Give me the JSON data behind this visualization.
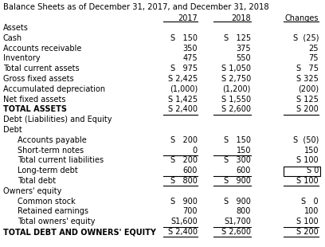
{
  "title": "Balance Sheets as of December 31, 2017, and December 31, 2018",
  "rows": [
    {
      "label": "Assets",
      "v2017": "",
      "v2018": "",
      "vchg": "",
      "style": "section",
      "indent": 0
    },
    {
      "label": "Cash",
      "v2017": "S   150",
      "v2018": "S   125",
      "vchg": "S  (25)",
      "style": "normal",
      "indent": 0
    },
    {
      "label": "Accounts receivable",
      "v2017": "350",
      "v2018": "375",
      "vchg": "25",
      "style": "normal",
      "indent": 0
    },
    {
      "label": "Inventory",
      "v2017": "475",
      "v2018": "550",
      "vchg": "75",
      "style": "normal",
      "indent": 0
    },
    {
      "label": "Total current assets",
      "v2017": "S   975",
      "v2018": "S 1,050",
      "vchg": "S   75",
      "style": "normal",
      "indent": 0
    },
    {
      "label": "Gross fixed assets",
      "v2017": "S 2,425",
      "v2018": "S 2,750",
      "vchg": "S 325",
      "style": "normal",
      "indent": 0
    },
    {
      "label": "Accumulated depreciation",
      "v2017": "(1,000)",
      "v2018": "(1,200)",
      "vchg": "(200)",
      "style": "normal",
      "indent": 0
    },
    {
      "label": "Net fixed assets",
      "v2017": "S 1,425",
      "v2018": "S 1,550",
      "vchg": "S 125",
      "style": "normal",
      "indent": 0
    },
    {
      "label": "TOTAL ASSETS",
      "v2017": "S 2,400",
      "v2018": "S 2,600",
      "vchg": "S 200",
      "style": "bold_underline",
      "indent": 0
    },
    {
      "label": "Debt (Liabilities) and Equity",
      "v2017": "",
      "v2018": "",
      "vchg": "",
      "style": "section",
      "indent": 0
    },
    {
      "label": "Debt",
      "v2017": "",
      "v2018": "",
      "vchg": "",
      "style": "section",
      "indent": 0
    },
    {
      "label": "Accounts payable",
      "v2017": "S   200",
      "v2018": "S   150",
      "vchg": "S  (50)",
      "style": "normal",
      "indent": 1
    },
    {
      "label": "Short-term notes",
      "v2017": "0",
      "v2018": "150",
      "vchg": "150",
      "style": "normal_underline_left",
      "indent": 1
    },
    {
      "label": "Total current liabilities",
      "v2017": "S   200",
      "v2018": "S   300",
      "vchg": "S 100",
      "style": "normal",
      "indent": 1
    },
    {
      "label": "Long-term debt",
      "v2017": "600",
      "v2018": "600",
      "vchg": "S 0",
      "style": "longterm",
      "indent": 1
    },
    {
      "label": "Total debt",
      "v2017": "S   800",
      "v2018": "S   900",
      "vchg": "S 100",
      "style": "underline",
      "indent": 1
    },
    {
      "label": "Owners' equity",
      "v2017": "",
      "v2018": "",
      "vchg": "",
      "style": "section",
      "indent": 0
    },
    {
      "label": "Common stock",
      "v2017": "S   900",
      "v2018": "S   900",
      "vchg": "S   0",
      "style": "normal",
      "indent": 1
    },
    {
      "label": "Retained earnings",
      "v2017": "700",
      "v2018": "800",
      "vchg": "100",
      "style": "normal",
      "indent": 1
    },
    {
      "label": "Total owners' equity",
      "v2017": "S1,600",
      "v2018": "S1,700",
      "vchg": "S 100",
      "style": "underline",
      "indent": 1
    },
    {
      "label": "TOTAL DEBT AND OWNERS' EQUITY",
      "v2017": "S 2,400",
      "v2018": "S 2,600",
      "vchg": "S 200",
      "style": "bold_underline",
      "indent": 0
    }
  ],
  "bg_color": "#ffffff",
  "font_size": 7.0,
  "title_font_size": 7.2
}
